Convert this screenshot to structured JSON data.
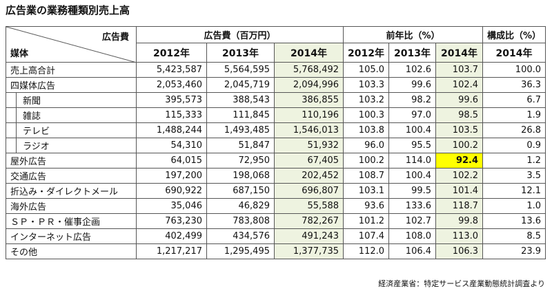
{
  "title": "広告業の業務種類別売上高",
  "table": {
    "corner_top": "広告費",
    "corner_bottom": "媒体",
    "groups": [
      "広告費（百万円）",
      "前年比（%）",
      "構成比（%）"
    ],
    "years": [
      "2012年",
      "2013年",
      "2014年",
      "2012年",
      "2013年",
      "2014年",
      "2014年"
    ],
    "rows": [
      [
        "売上高合計",
        "5,423,587",
        "5,564,595",
        "5,768,492",
        "105.0",
        "102.6",
        "103.7",
        "100.0"
      ],
      [
        "四媒体広告",
        "2,053,460",
        "2,045,719",
        "2,094,996",
        "103.3",
        "99.6",
        "102.4",
        "36.3"
      ],
      [
        "新聞",
        "395,573",
        "388,543",
        "386,855",
        "103.2",
        "98.2",
        "99.6",
        "6.7"
      ],
      [
        "雑誌",
        "115,333",
        "111,845",
        "110,196",
        "100.3",
        "97.0",
        "98.5",
        "1.9"
      ],
      [
        "テレビ",
        "1,488,244",
        "1,493,485",
        "1,546,013",
        "103.8",
        "100.4",
        "103.5",
        "26.8"
      ],
      [
        "ラジオ",
        "54,310",
        "51,847",
        "51,932",
        "96.0",
        "95.5",
        "100.2",
        "0.9"
      ],
      [
        "屋外広告",
        "64,015",
        "72,950",
        "67,405",
        "100.2",
        "114.0",
        "92.4",
        "1.2"
      ],
      [
        "交通広告",
        "197,200",
        "198,068",
        "202,452",
        "108.7",
        "100.4",
        "102.2",
        "3.5"
      ],
      [
        "折込み・ダイレクトメール",
        "690,922",
        "687,150",
        "696,807",
        "103.1",
        "99.5",
        "101.4",
        "12.1"
      ],
      [
        "海外広告",
        "35,046",
        "46,829",
        "55,588",
        "93.6",
        "133.6",
        "118.7",
        "1.0"
      ],
      [
        "ＳＰ・ＰＲ・催事企画",
        "763,230",
        "783,808",
        "782,267",
        "101.2",
        "102.7",
        "99.8",
        "13.6"
      ],
      [
        "インターネット広告",
        "402,499",
        "434,576",
        "491,243",
        "107.4",
        "108.0",
        "113.0",
        "8.5"
      ],
      [
        "その他",
        "1,217,217",
        "1,295,495",
        "1,377,735",
        "112.0",
        "106.4",
        "106.3",
        "23.9"
      ]
    ]
  },
  "source": "経済産業省：特定サービス産業動態統計調査より"
}
